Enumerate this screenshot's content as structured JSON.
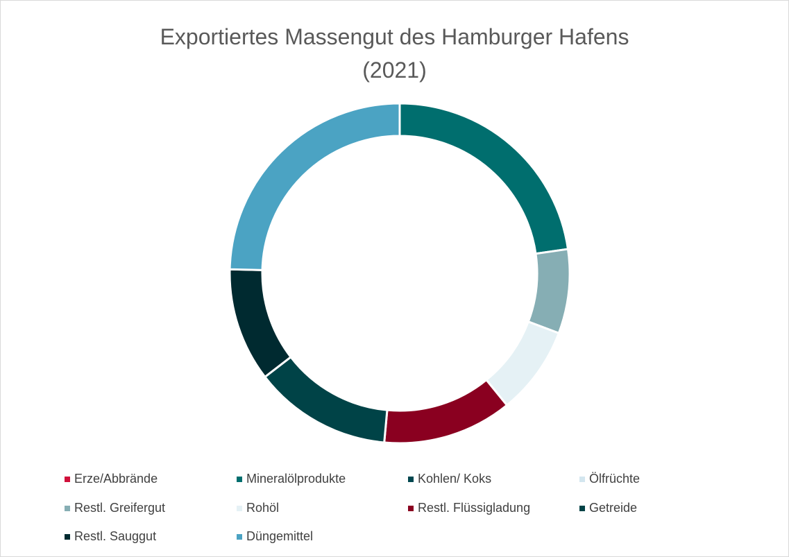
{
  "chart_data": {
    "type": "donut",
    "title": "Exportiertes Massengut des Hamburger Hafens (2021)",
    "categories": [
      "Erze/Abbrände",
      "Mineralölprodukte",
      "Kohlen/ Koks",
      "Ölfrüchte",
      "Restl. Greifergut",
      "Rohöl",
      "Restl. Flüssigladung",
      "Getreide",
      "Restl. Sauggut",
      "Düngemittel"
    ],
    "values": [
      0,
      22.7,
      0,
      0,
      8.0,
      8.4,
      12.3,
      13.1,
      10.8,
      24.6
    ],
    "colors": [
      "#d0103a",
      "#006e6e",
      "#00474f",
      "#d3e6ef",
      "#86aeb4",
      "#e5f1f5",
      "#8a0020",
      "#004347",
      "#002a30",
      "#4ba3c3"
    ],
    "legend": "bottom"
  }
}
